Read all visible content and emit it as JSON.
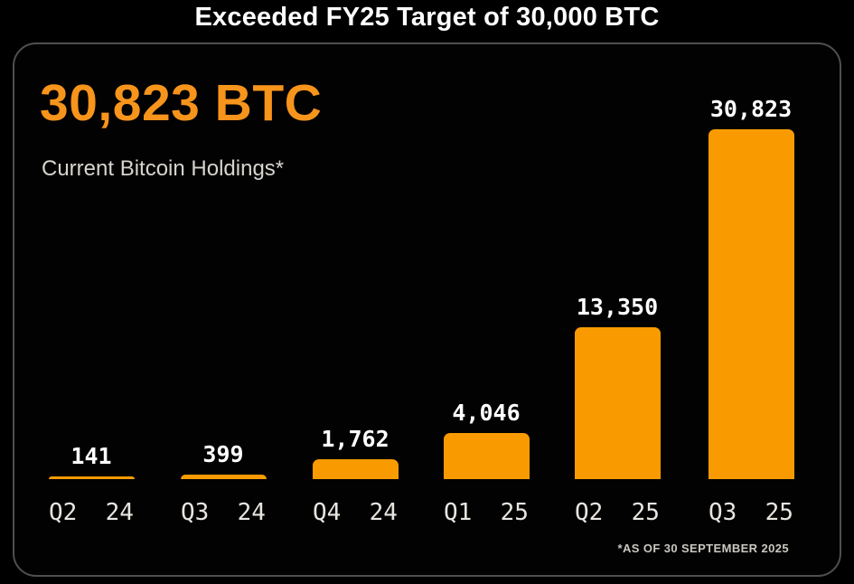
{
  "page": {
    "title": "Exceeded FY25 Target of 30,000 BTC"
  },
  "panel": {
    "headline": "30,823 BTC",
    "subtitle": "Current Bitcoin Holdings*",
    "footnote": "*AS OF 30 SEPTEMBER 2025"
  },
  "colors": {
    "background": "#000000",
    "panel_border": "#4F4F4F",
    "bar_orange": "#F99B00",
    "headline_orange": "#F7941C",
    "value_label": "#FFFFFF",
    "axis_label": "#E8E5E1",
    "footnote_text": "#CBC7C1"
  },
  "chart_data": {
    "type": "bar",
    "title": "Exceeded FY25 Target of 30,000 BTC",
    "categories": [
      "Q2  24",
      "Q3  24",
      "Q4  24",
      "Q1  25",
      "Q2  25",
      "Q3  25"
    ],
    "values": [
      141,
      399,
      1762,
      4046,
      13350,
      30823
    ],
    "value_labels": [
      "141",
      "399",
      "1,762",
      "4,046",
      "13,350",
      "30,823"
    ],
    "series_name": "Bitcoin Holdings (BTC)",
    "xlabel": "",
    "ylabel": "",
    "ylim": [
      0,
      30823
    ],
    "grid": false,
    "legend": false,
    "bar_color": "#F99B00",
    "annotation": "*AS OF 30 SEPTEMBER 2025"
  }
}
